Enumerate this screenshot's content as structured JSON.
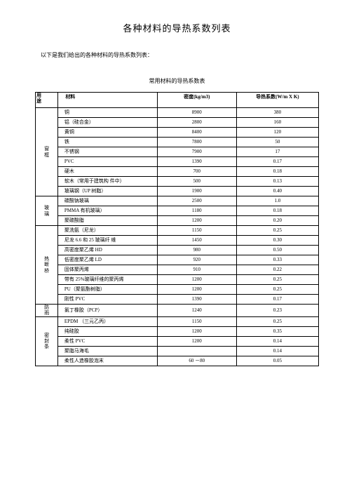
{
  "title": "各种材料的导热系数列表",
  "intro": "以下是我们给出的各种材料的导热系数列表：",
  "subtitle": "常用材料的导热系数表",
  "headers": {
    "use_top": "用",
    "use_bottom": "途",
    "material": "材料",
    "density": "密度(kg/m3)",
    "conductivity": "导热系数(W/m X K)"
  },
  "groups": [
    {
      "label": "窗框",
      "rows": [
        {
          "mat": "铜",
          "dens": "8900",
          "cond": "380"
        },
        {
          "mat": "铝（硅合金）",
          "dens": "2800",
          "cond": "160"
        },
        {
          "mat": "黄铜",
          "dens": "8400",
          "cond": "120"
        },
        {
          "mat": "铁",
          "dens": "7800",
          "cond": "50"
        },
        {
          "mat": "不锈钢",
          "dens": "7900",
          "cond": "17"
        },
        {
          "mat": "PVC",
          "dens": "1390",
          "cond": "0.17"
        },
        {
          "mat": "硬木",
          "dens": "700",
          "cond": "0.18"
        },
        {
          "mat": "软木（常用于建筑构 件中）",
          "dens": "500",
          "cond": "0.13"
        },
        {
          "mat": "玻璃钢（UP 树脂）",
          "dens": "1900",
          "cond": "0.40"
        }
      ]
    },
    {
      "label": "玻璃",
      "rows": [
        {
          "mat": "碳酸钠玻璃",
          "dens": "2500",
          "cond": "1.0"
        },
        {
          "mat": "PMMA 有机玻璃）",
          "dens": "1180",
          "cond": "0.18"
        },
        {
          "mat": "聚碳酸脂",
          "dens": "1200",
          "cond": "0.20"
        }
      ]
    },
    {
      "label": "热断桥",
      "rows": [
        {
          "mat": "聚洗氨（尼龙）",
          "dens": "1150",
          "cond": "0.25"
        },
        {
          "mat": "尼龙 6.6 和 25 玻璃纤 维",
          "dens": "1450",
          "cond": "0.30"
        },
        {
          "mat": "高密度聚乙烯 HD",
          "dens": "980",
          "cond": "0.50"
        },
        {
          "mat": "低密度聚乙烯 LD",
          "dens": "920",
          "cond": "0.33"
        },
        {
          "mat": "固体聚丙烯",
          "dens": "910",
          "cond": "0.22"
        },
        {
          "mat": "带有 25%玻璃纤维的聚丙烯",
          "dens": "1200",
          "cond": "0.25"
        },
        {
          "mat": "PU（聚氨酯树脂）",
          "dens": "1200",
          "cond": "0.25"
        },
        {
          "mat": "刚性 PVC",
          "dens": "1390",
          "cond": "0.17"
        }
      ]
    },
    {
      "label": "防雨",
      "rows": [
        {
          "mat": "氯丁橡胶（PCP）",
          "dens": "1240",
          "cond": "0.23"
        }
      ]
    },
    {
      "label": "密封条",
      "rows": [
        {
          "mat": "EPDM （三元乙丙）",
          "dens": "1150",
          "cond": "0.25"
        },
        {
          "mat": "纯硅胶",
          "dens": "1200",
          "cond": "0.35"
        },
        {
          "mat": "柔性 PVC",
          "dens": "1200",
          "cond": "0.14"
        },
        {
          "mat": "聚脂马海毛",
          "dens": "",
          "cond": "0.14"
        },
        {
          "mat": "柔性人造橡胶泡末",
          "dens": "60 －80",
          "cond": "0.05"
        }
      ]
    }
  ]
}
